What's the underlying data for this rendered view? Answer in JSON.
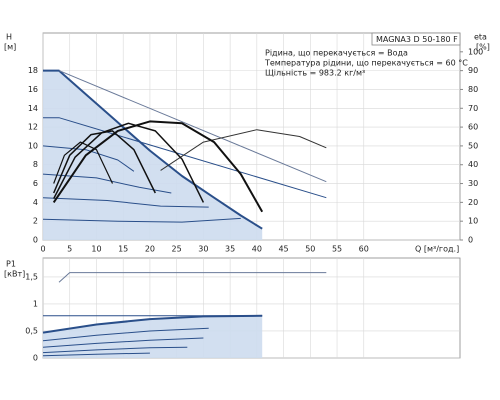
{
  "chart_data": [
    {
      "type": "line",
      "model": "MAGNA3 D 50-180 F",
      "annotations": [
        "Рідина, що перекачується = Вода",
        "Температура рідини, що перекачується = 60 °C",
        "Щільність = 983.2 кг/м³"
      ],
      "ylabel": "H",
      "yunit": "[м]",
      "y2label": "eta",
      "y2unit": "[%]",
      "xlabel": "Q [м³/год.]",
      "xlim": [
        0,
        78
      ],
      "xticks": [
        0,
        5,
        10,
        15,
        20,
        25,
        30,
        35,
        40,
        45,
        50,
        55,
        60
      ],
      "ylim": [
        0,
        22
      ],
      "yticks": [
        0,
        2,
        4,
        6,
        8,
        10,
        12,
        14,
        16,
        18
      ],
      "y2lim": [
        0,
        110
      ],
      "y2ticks": [
        0,
        10,
        20,
        30,
        40,
        50,
        60,
        70,
        80,
        90,
        100
      ],
      "grid": true,
      "series": [
        {
          "color": "#2a4f8a",
          "fill": "#cddcee",
          "width": 2,
          "x": [
            0,
            3,
            8,
            14,
            20,
            26,
            32,
            37,
            41
          ],
          "values": [
            18,
            18,
            15.5,
            12.5,
            9.5,
            6.8,
            4.5,
            2.6,
            1.2
          ]
        },
        {
          "color": "#2a4f8a",
          "width": 1,
          "x": [
            0,
            8,
            14,
            17
          ],
          "values": [
            10,
            9.6,
            8.5,
            7.3
          ]
        },
        {
          "color": "#2a4f8a",
          "width": 1,
          "x": [
            0,
            10,
            18,
            24
          ],
          "values": [
            7,
            6.6,
            5.6,
            5
          ]
        },
        {
          "color": "#2a4f8a",
          "width": 1,
          "x": [
            0,
            12,
            22,
            31
          ],
          "values": [
            4.5,
            4.2,
            3.6,
            3.5
          ]
        },
        {
          "color": "#2a4f8a",
          "width": 1,
          "x": [
            0,
            14,
            26,
            37
          ],
          "values": [
            2.2,
            2,
            1.9,
            2.3
          ]
        },
        {
          "color": "#2a4f8a",
          "width": 1,
          "x": [
            0,
            3,
            53
          ],
          "values": [
            13,
            13,
            4.5
          ]
        },
        {
          "color": "#6a7a99",
          "width": 1,
          "x": [
            3,
            53
          ],
          "values": [
            18,
            6.2
          ]
        },
        {
          "color": "#333333",
          "width": 1,
          "axis": "y2",
          "x": [
            22,
            30,
            40,
            48,
            53
          ],
          "values": [
            37,
            52,
            58.6,
            55,
            49
          ]
        },
        {
          "color": "#111111",
          "width": 2,
          "axis": "y2",
          "x": [
            2,
            8,
            14,
            20,
            26,
            32,
            37,
            41
          ],
          "values": [
            20,
            45,
            58,
            63,
            62,
            52,
            35,
            15
          ]
        },
        {
          "color": "#111111",
          "width": 1.5,
          "axis": "y2",
          "x": [
            2,
            6,
            11,
            16,
            21,
            26,
            30
          ],
          "values": [
            22,
            44,
            57,
            62,
            58,
            43,
            20
          ]
        },
        {
          "color": "#111111",
          "width": 1.5,
          "axis": "y2",
          "x": [
            2,
            5,
            9,
            13,
            17,
            21
          ],
          "values": [
            25,
            45,
            56,
            58,
            48,
            25
          ]
        },
        {
          "color": "#111111",
          "width": 1.2,
          "axis": "y2",
          "x": [
            2,
            4,
            7,
            10,
            13
          ],
          "values": [
            30,
            45,
            52,
            48,
            30
          ]
        }
      ]
    },
    {
      "type": "line",
      "ylabel": "P1",
      "yunit": "[кВт]",
      "xlim": [
        0,
        78
      ],
      "ylim": [
        0,
        1.85
      ],
      "yticks": [
        0,
        {
          "value": 0.5,
          "label": "0,5"
        },
        1,
        {
          "value": 1.5,
          "label": "1,5"
        }
      ],
      "grid": true,
      "series": [
        {
          "color": "#2a4f8a",
          "fill": "#cddcee",
          "width": 2,
          "x": [
            0,
            10,
            20,
            30,
            41
          ],
          "values": [
            0.47,
            0.62,
            0.72,
            0.77,
            0.78
          ]
        },
        {
          "color": "#2a4f8a",
          "width": 1,
          "x": [
            0,
            10,
            20,
            30,
            41
          ],
          "values": [
            0.78,
            0.78,
            0.78,
            0.78,
            0.78
          ]
        },
        {
          "color": "#2a4f8a",
          "width": 1,
          "x": [
            0,
            10,
            20,
            31
          ],
          "values": [
            0.32,
            0.42,
            0.5,
            0.55
          ]
        },
        {
          "color": "#2a4f8a",
          "width": 1,
          "x": [
            0,
            10,
            20,
            30
          ],
          "values": [
            0.2,
            0.27,
            0.33,
            0.37
          ]
        },
        {
          "color": "#2a4f8a",
          "width": 1,
          "x": [
            0,
            10,
            20,
            27
          ],
          "values": [
            0.1,
            0.15,
            0.19,
            0.2
          ]
        },
        {
          "color": "#2a4f8a",
          "width": 1,
          "x": [
            0,
            10,
            20
          ],
          "values": [
            0.04,
            0.07,
            0.09
          ]
        },
        {
          "color": "#6a7a99",
          "width": 1,
          "x": [
            3,
            5,
            53
          ],
          "values": [
            1.4,
            1.58,
            1.58
          ]
        }
      ]
    }
  ]
}
